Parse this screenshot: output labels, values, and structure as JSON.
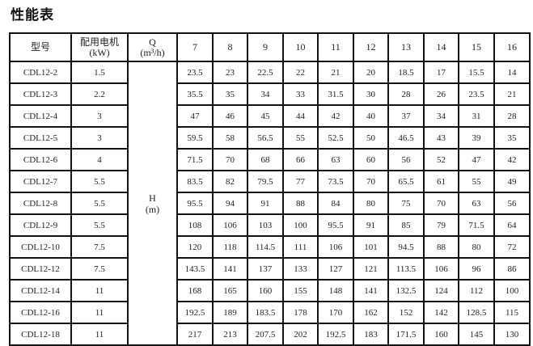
{
  "title": "性能表",
  "header": {
    "model": "型号",
    "motor": "配用电机",
    "motor_unit": "(kW)",
    "q": "Q",
    "q_unit": "(m³/h)",
    "flows": [
      "7",
      "8",
      "9",
      "10",
      "11",
      "12",
      "13",
      "14",
      "15",
      "16"
    ]
  },
  "h_label": "H",
  "h_unit": "(m)",
  "rows": [
    {
      "model": "CDL12-2",
      "kw": "1.5",
      "h": [
        "23.5",
        "23",
        "22.5",
        "22",
        "21",
        "20",
        "18.5",
        "17",
        "15.5",
        "14"
      ]
    },
    {
      "model": "CDL12-3",
      "kw": "2.2",
      "h": [
        "35.5",
        "35",
        "34",
        "33",
        "31.5",
        "30",
        "28",
        "26",
        "23.5",
        "21"
      ]
    },
    {
      "model": "CDL12-4",
      "kw": "3",
      "h": [
        "47",
        "46",
        "45",
        "44",
        "42",
        "40",
        "37",
        "34",
        "31",
        "28"
      ]
    },
    {
      "model": "CDL12-5",
      "kw": "3",
      "h": [
        "59.5",
        "58",
        "56.5",
        "55",
        "52.5",
        "50",
        "46.5",
        "43",
        "39",
        "35"
      ]
    },
    {
      "model": "CDL12-6",
      "kw": "4",
      "h": [
        "71.5",
        "70",
        "68",
        "66",
        "63",
        "60",
        "56",
        "52",
        "47",
        "42"
      ]
    },
    {
      "model": "CDL12-7",
      "kw": "5.5",
      "h": [
        "83.5",
        "82",
        "79.5",
        "77",
        "73.5",
        "70",
        "65.5",
        "61",
        "55",
        "49"
      ]
    },
    {
      "model": "CDL12-8",
      "kw": "5.5",
      "h": [
        "95.5",
        "94",
        "91",
        "88",
        "84",
        "80",
        "75",
        "70",
        "63",
        "56"
      ]
    },
    {
      "model": "CDL12-9",
      "kw": "5.5",
      "h": [
        "108",
        "106",
        "103",
        "100",
        "95.5",
        "91",
        "85",
        "79",
        "71.5",
        "64"
      ]
    },
    {
      "model": "CDL12-10",
      "kw": "7.5",
      "h": [
        "120",
        "118",
        "114.5",
        "111",
        "106",
        "101",
        "94.5",
        "88",
        "80",
        "72"
      ]
    },
    {
      "model": "CDL12-12",
      "kw": "7.5",
      "h": [
        "143.5",
        "141",
        "137",
        "133",
        "127",
        "121",
        "113.5",
        "106",
        "96",
        "86"
      ]
    },
    {
      "model": "CDL12-14",
      "kw": "11",
      "h": [
        "168",
        "165",
        "160",
        "155",
        "148",
        "141",
        "132.5",
        "124",
        "112",
        "100"
      ]
    },
    {
      "model": "CDL12-16",
      "kw": "11",
      "h": [
        "192.5",
        "189",
        "183.5",
        "178",
        "170",
        "162",
        "152",
        "142",
        "128.5",
        "115"
      ]
    },
    {
      "model": "CDL12-18",
      "kw": "11",
      "h": [
        "217",
        "213",
        "207.5",
        "202",
        "192.5",
        "183",
        "171.5",
        "160",
        "145",
        "130"
      ]
    }
  ]
}
